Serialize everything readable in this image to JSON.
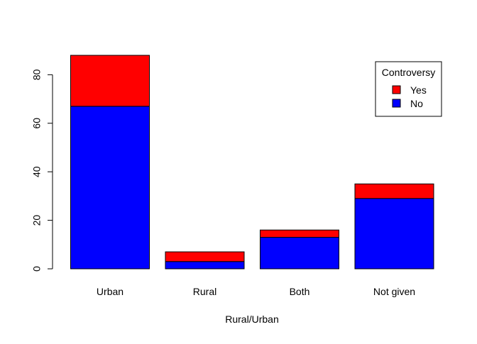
{
  "chart_data": {
    "type": "bar",
    "stacked": true,
    "title": "",
    "xlabel": "Rural/Urban",
    "ylabel": "",
    "ylim": [
      0,
      88
    ],
    "yticks": [
      0,
      20,
      40,
      60,
      80
    ],
    "categories": [
      "Urban",
      "Rural",
      "Both",
      "Not given"
    ],
    "series": [
      {
        "name": "No",
        "color": "#0000ff",
        "values": [
          67,
          3,
          13,
          29
        ]
      },
      {
        "name": "Yes",
        "color": "#ff0000",
        "values": [
          21,
          4,
          3,
          6
        ]
      }
    ],
    "legend": {
      "title": "Controversy",
      "position": "top-right",
      "order": [
        "Yes",
        "No"
      ]
    },
    "grid": false
  }
}
